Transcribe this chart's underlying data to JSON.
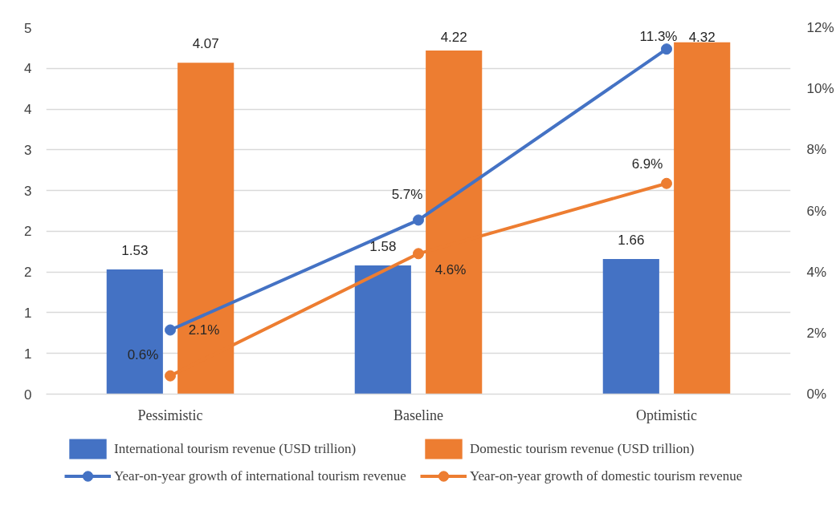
{
  "chart_data": {
    "type": "bar",
    "categories": [
      "Pessimistic",
      "Baseline",
      "Optimistic"
    ],
    "series": [
      {
        "name": "International tourism revenue (USD trillion)",
        "color": "#4472c4",
        "values": [
          1.53,
          1.58,
          1.66
        ],
        "value_labels": [
          "1.53",
          "1.58",
          "1.66"
        ]
      },
      {
        "name": "Domestic tourism revenue (USD trillion)",
        "color": "#ed7d31",
        "values": [
          4.07,
          4.22,
          4.32
        ],
        "value_labels": [
          "4.07",
          "4.22",
          "4.32"
        ]
      },
      {
        "name": "Year-on-year growth of international tourism revenue",
        "type": "line",
        "axis": "y2",
        "color": "#4472c4",
        "values": [
          2.1,
          5.7,
          11.3
        ],
        "value_labels": [
          "2.1%",
          "5.7%",
          "11.3%"
        ]
      },
      {
        "name": "Year-on-year growth of domestic tourism revenue",
        "type": "line",
        "axis": "y2",
        "color": "#ed7d31",
        "values": [
          0.6,
          4.6,
          6.9
        ],
        "value_labels": [
          "0.6%",
          "4.6%",
          "6.9%"
        ]
      }
    ],
    "ylim": [
      0,
      4.5
    ],
    "yticks": [
      0,
      {
        "value": 0.5,
        "label": "1"
      },
      1,
      {
        "value": 1.5,
        "label": "2"
      },
      2,
      {
        "value": 2.5,
        "label": "3"
      },
      3,
      {
        "value": 3.5,
        "label": "4"
      },
      4,
      {
        "value": 4.5,
        "label": "5"
      }
    ],
    "y2lim": [
      0,
      12
    ],
    "y2ticks": [
      {
        "value": 0,
        "label": "0%"
      },
      {
        "value": 2,
        "label": "2%"
      },
      {
        "value": 4,
        "label": "4%"
      },
      {
        "value": 6,
        "label": "6%"
      },
      {
        "value": 8,
        "label": "8%"
      },
      {
        "value": 10,
        "label": "10%"
      },
      {
        "value": 12,
        "label": "12%"
      }
    ],
    "grid": "y",
    "legend": "bottom",
    "marker": "circle",
    "line_style": "solid"
  }
}
